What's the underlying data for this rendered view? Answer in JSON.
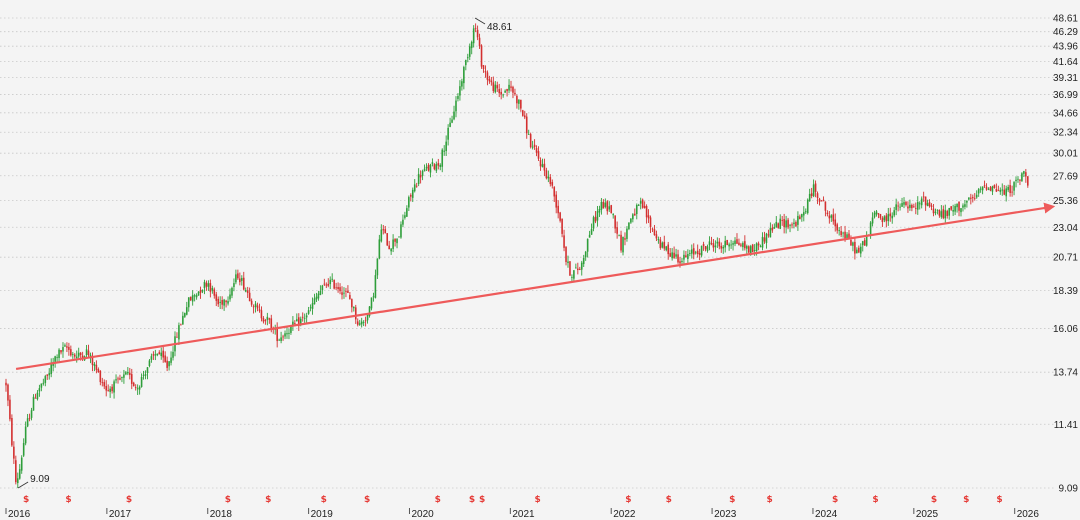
{
  "chart_data": {
    "type": "candlestick",
    "scale": "log",
    "grid": "horizontal dotted",
    "y_ticks": [
      "48.61",
      "46.29",
      "43.96",
      "41.64",
      "39.31",
      "36.99",
      "34.66",
      "32.34",
      "30.01",
      "27.69",
      "25.36",
      "23.04",
      "20.71",
      "18.39",
      "16.06",
      "13.74",
      "11.41",
      "9.09"
    ],
    "x_ticks": [
      "2016",
      "2017",
      "2018",
      "2019",
      "2020",
      "2021",
      "2022",
      "2023",
      "2024",
      "2025",
      "2026"
    ],
    "ylim": [
      9.09,
      48.61
    ],
    "xlim": [
      2016.0,
      2026.35
    ],
    "annotations": [
      {
        "label": "48.61",
        "x": 2020.65,
        "y": 48.61,
        "kind": "high"
      },
      {
        "label": "9.09",
        "x": 2016.12,
        "y": 9.09,
        "kind": "low"
      }
    ],
    "price_path": [
      [
        2016.0,
        13.2
      ],
      [
        2016.05,
        11.0
      ],
      [
        2016.1,
        9.2
      ],
      [
        2016.14,
        9.8
      ],
      [
        2016.2,
        11.3
      ],
      [
        2016.3,
        12.8
      ],
      [
        2016.4,
        13.4
      ],
      [
        2016.5,
        14.6
      ],
      [
        2016.6,
        15.0
      ],
      [
        2016.7,
        14.5
      ],
      [
        2016.8,
        14.8
      ],
      [
        2016.9,
        13.8
      ],
      [
        2017.0,
        12.9
      ],
      [
        2017.1,
        13.2
      ],
      [
        2017.2,
        13.6
      ],
      [
        2017.3,
        13.0
      ],
      [
        2017.4,
        14.0
      ],
      [
        2017.5,
        14.8
      ],
      [
        2017.6,
        14.0
      ],
      [
        2017.7,
        15.8
      ],
      [
        2017.8,
        17.6
      ],
      [
        2017.9,
        18.3
      ],
      [
        2018.0,
        19.0
      ],
      [
        2018.1,
        17.5
      ],
      [
        2018.2,
        18.0
      ],
      [
        2018.3,
        19.5
      ],
      [
        2018.4,
        18.2
      ],
      [
        2018.5,
        17.0
      ],
      [
        2018.6,
        16.5
      ],
      [
        2018.7,
        15.5
      ],
      [
        2018.8,
        16.0
      ],
      [
        2018.9,
        16.4
      ],
      [
        2019.0,
        17.0
      ],
      [
        2019.1,
        18.2
      ],
      [
        2019.2,
        19.0
      ],
      [
        2019.3,
        18.6
      ],
      [
        2019.4,
        18.0
      ],
      [
        2019.5,
        16.2
      ],
      [
        2019.6,
        17.0
      ],
      [
        2019.65,
        18.5
      ],
      [
        2019.72,
        23.0
      ],
      [
        2019.8,
        21.5
      ],
      [
        2019.9,
        22.5
      ],
      [
        2020.0,
        25.5
      ],
      [
        2020.1,
        27.8
      ],
      [
        2020.2,
        28.5
      ],
      [
        2020.3,
        29.0
      ],
      [
        2020.4,
        33.0
      ],
      [
        2020.5,
        38.0
      ],
      [
        2020.58,
        43.0
      ],
      [
        2020.65,
        47.5
      ],
      [
        2020.72,
        41.0
      ],
      [
        2020.8,
        38.5
      ],
      [
        2020.9,
        37.0
      ],
      [
        2021.0,
        38.0
      ],
      [
        2021.1,
        35.5
      ],
      [
        2021.2,
        31.0
      ],
      [
        2021.3,
        29.0
      ],
      [
        2021.4,
        27.0
      ],
      [
        2021.5,
        23.5
      ],
      [
        2021.55,
        20.5
      ],
      [
        2021.6,
        19.5
      ],
      [
        2021.7,
        20.0
      ],
      [
        2021.8,
        23.0
      ],
      [
        2021.9,
        25.0
      ],
      [
        2022.0,
        24.5
      ],
      [
        2022.1,
        21.5
      ],
      [
        2022.2,
        24.0
      ],
      [
        2022.3,
        25.0
      ],
      [
        2022.4,
        23.0
      ],
      [
        2022.5,
        21.5
      ],
      [
        2022.6,
        21.0
      ],
      [
        2022.7,
        20.5
      ],
      [
        2022.8,
        21.0
      ],
      [
        2022.9,
        21.3
      ],
      [
        2023.0,
        21.8
      ],
      [
        2023.1,
        21.5
      ],
      [
        2023.2,
        22.0
      ],
      [
        2023.3,
        21.6
      ],
      [
        2023.4,
        21.2
      ],
      [
        2023.5,
        22.0
      ],
      [
        2023.6,
        23.0
      ],
      [
        2023.7,
        23.5
      ],
      [
        2023.8,
        23.2
      ],
      [
        2023.9,
        24.0
      ],
      [
        2024.0,
        26.5
      ],
      [
        2024.08,
        25.5
      ],
      [
        2024.15,
        24.0
      ],
      [
        2024.25,
        23.0
      ],
      [
        2024.35,
        22.0
      ],
      [
        2024.45,
        21.0
      ],
      [
        2024.55,
        22.5
      ],
      [
        2024.62,
        24.5
      ],
      [
        2024.7,
        23.5
      ],
      [
        2024.8,
        24.5
      ],
      [
        2024.9,
        25.0
      ],
      [
        2025.0,
        24.5
      ],
      [
        2025.1,
        25.5
      ],
      [
        2025.2,
        24.5
      ],
      [
        2025.3,
        24.0
      ],
      [
        2025.4,
        24.6
      ],
      [
        2025.5,
        25.0
      ],
      [
        2025.6,
        25.5
      ],
      [
        2025.7,
        26.8
      ],
      [
        2025.8,
        26.5
      ],
      [
        2025.9,
        26.0
      ],
      [
        2026.0,
        26.8
      ],
      [
        2026.1,
        28.0
      ],
      [
        2026.13,
        27.2
      ]
    ],
    "trendline": {
      "from": {
        "x": 2016.1,
        "y": 13.9
      },
      "to": {
        "x": 2026.38,
        "y": 24.8
      },
      "color": "#ee5a5a"
    },
    "dividend_markers_x": [
      2016.2,
      2016.62,
      2017.22,
      2018.2,
      2018.6,
      2019.15,
      2019.58,
      2020.28,
      2020.62,
      2020.72,
      2021.27,
      2022.17,
      2022.57,
      2023.2,
      2023.57,
      2024.22,
      2024.62,
      2025.2,
      2025.52,
      2025.85
    ],
    "colors": {
      "up": "#2e9e3a",
      "down": "#d32f2f",
      "trend": "#ee5a5a",
      "grid": "#c8c8c8",
      "bg": "#f4f4f4"
    }
  }
}
